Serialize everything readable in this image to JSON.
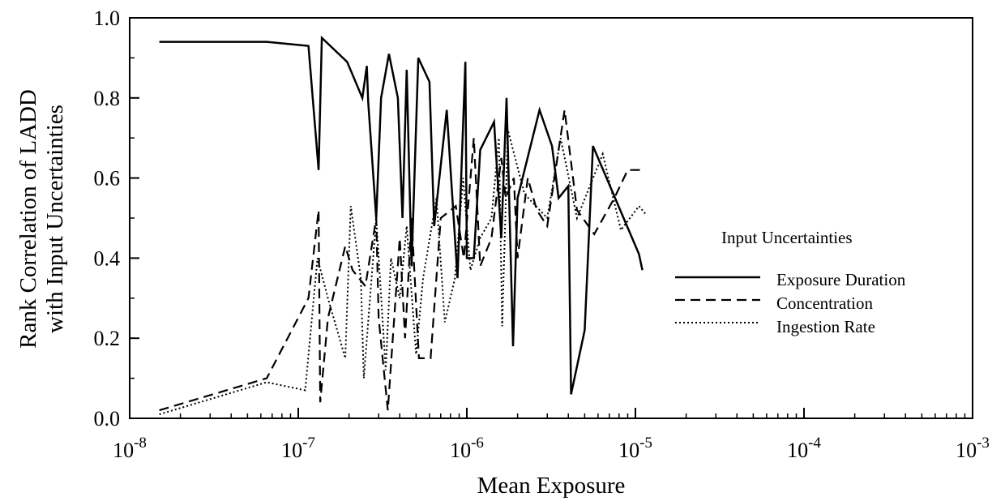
{
  "chart_data": {
    "type": "line",
    "xlabel": "Mean Exposure",
    "ylabel": [
      "Rank Correlation of LADD",
      "with Input Uncertainties"
    ],
    "xscale": "log",
    "xlim": [
      1e-08,
      0.001
    ],
    "ylim": [
      0,
      1
    ],
    "x_tick_labels": [
      {
        "base": "10",
        "exp": "-8"
      },
      {
        "base": "10",
        "exp": "-7"
      },
      {
        "base": "10",
        "exp": "-6"
      },
      {
        "base": "10",
        "exp": "-5"
      },
      {
        "base": "10",
        "exp": "-4"
      },
      {
        "base": "10",
        "exp": "-3"
      }
    ],
    "y_tick_labels": [
      "0.0",
      "0.2",
      "0.4",
      "0.6",
      "0.8",
      "1.0"
    ],
    "grid": false,
    "legend": {
      "title": "Input Uncertainties",
      "position": "right"
    },
    "series": [
      {
        "name": "Exposure Duration",
        "style": "solid",
        "points": [
          [
            1.5e-08,
            0.94
          ],
          [
            6.5e-08,
            0.94
          ],
          [
            1.15e-07,
            0.93
          ],
          [
            1.32e-07,
            0.62
          ],
          [
            1.38e-07,
            0.95
          ],
          [
            1.95e-07,
            0.89
          ],
          [
            2.4e-07,
            0.8
          ],
          [
            2.55e-07,
            0.88
          ],
          [
            2.6e-07,
            0.79
          ],
          [
            2.9e-07,
            0.5
          ],
          [
            3.1e-07,
            0.8
          ],
          [
            3.45e-07,
            0.91
          ],
          [
            3.9e-07,
            0.8
          ],
          [
            4.15e-07,
            0.5
          ],
          [
            4.4e-07,
            0.87
          ],
          [
            4.7e-07,
            0.38
          ],
          [
            5.15e-07,
            0.9
          ],
          [
            6e-07,
            0.84
          ],
          [
            6.4e-07,
            0.48
          ],
          [
            7.6e-07,
            0.77
          ],
          [
            8.8e-07,
            0.35
          ],
          [
            9.8e-07,
            0.89
          ],
          [
            1e-06,
            0.4
          ],
          [
            1.1e-06,
            0.4
          ],
          [
            1.2e-06,
            0.67
          ],
          [
            1.45e-06,
            0.74
          ],
          [
            1.6e-06,
            0.45
          ],
          [
            1.72e-06,
            0.8
          ],
          [
            1.88e-06,
            0.18
          ],
          [
            2e-06,
            0.55
          ],
          [
            2.7e-06,
            0.77
          ],
          [
            3.2e-06,
            0.68
          ],
          [
            3.5e-06,
            0.55
          ],
          [
            4e-06,
            0.58
          ],
          [
            4.15e-06,
            0.06
          ],
          [
            5e-06,
            0.22
          ],
          [
            5.6e-06,
            0.68
          ],
          [
            1.05e-05,
            0.41
          ],
          [
            1.1e-05,
            0.37
          ]
        ]
      },
      {
        "name": "Concentration",
        "style": "dashed",
        "points": [
          [
            1.5e-08,
            0.02
          ],
          [
            6.5e-08,
            0.1
          ],
          [
            1.15e-07,
            0.3
          ],
          [
            1.32e-07,
            0.52
          ],
          [
            1.35e-07,
            0.04
          ],
          [
            1.5e-07,
            0.25
          ],
          [
            1.9e-07,
            0.43
          ],
          [
            2.1e-07,
            0.37
          ],
          [
            2.5e-07,
            0.33
          ],
          [
            2.9e-07,
            0.5
          ],
          [
            3e-07,
            0.25
          ],
          [
            3.4e-07,
            0.02
          ],
          [
            4e-07,
            0.45
          ],
          [
            4.3e-07,
            0.2
          ],
          [
            4.7e-07,
            0.5
          ],
          [
            5.2e-07,
            0.15
          ],
          [
            6.1e-07,
            0.15
          ],
          [
            7e-07,
            0.5
          ],
          [
            8.6e-07,
            0.53
          ],
          [
            9.6e-07,
            0.4
          ],
          [
            1.1e-06,
            0.7
          ],
          [
            1.2e-06,
            0.38
          ],
          [
            1.4e-06,
            0.45
          ],
          [
            1.6e-06,
            0.65
          ],
          [
            1.7e-06,
            0.55
          ],
          [
            1.9e-06,
            0.6
          ],
          [
            2e-06,
            0.4
          ],
          [
            2.3e-06,
            0.6
          ],
          [
            2.6e-06,
            0.52
          ],
          [
            3e-06,
            0.48
          ],
          [
            3.8e-06,
            0.77
          ],
          [
            4.5e-06,
            0.52
          ],
          [
            5.7e-06,
            0.46
          ],
          [
            7.5e-06,
            0.55
          ],
          [
            9e-06,
            0.62
          ],
          [
            1.1e-05,
            0.62
          ]
        ]
      },
      {
        "name": "Ingestion Rate",
        "style": "dotted",
        "points": [
          [
            1.5e-08,
            0.01
          ],
          [
            6.5e-08,
            0.09
          ],
          [
            1.1e-07,
            0.07
          ],
          [
            1.3e-07,
            0.4
          ],
          [
            1.5e-07,
            0.3
          ],
          [
            1.9e-07,
            0.15
          ],
          [
            2.05e-07,
            0.53
          ],
          [
            2.35e-07,
            0.35
          ],
          [
            2.45e-07,
            0.1
          ],
          [
            2.9e-07,
            0.5
          ],
          [
            3.3e-07,
            0.12
          ],
          [
            3.55e-07,
            0.4
          ],
          [
            4e-07,
            0.3
          ],
          [
            4.4e-07,
            0.48
          ],
          [
            5e-07,
            0.16
          ],
          [
            5.5e-07,
            0.35
          ],
          [
            6.6e-07,
            0.55
          ],
          [
            7.4e-07,
            0.24
          ],
          [
            8.5e-07,
            0.35
          ],
          [
            9.5e-07,
            0.6
          ],
          [
            1.05e-06,
            0.37
          ],
          [
            1.2e-06,
            0.45
          ],
          [
            1.4e-06,
            0.5
          ],
          [
            1.55e-06,
            0.7
          ],
          [
            1.62e-06,
            0.23
          ],
          [
            1.75e-06,
            0.72
          ],
          [
            2.2e-06,
            0.56
          ],
          [
            3e-06,
            0.5
          ],
          [
            3.6e-06,
            0.7
          ],
          [
            4.5e-06,
            0.5
          ],
          [
            6.4e-06,
            0.66
          ],
          [
            8.2e-06,
            0.47
          ],
          [
            1.05e-05,
            0.53
          ],
          [
            1.15e-05,
            0.51
          ]
        ]
      }
    ]
  }
}
